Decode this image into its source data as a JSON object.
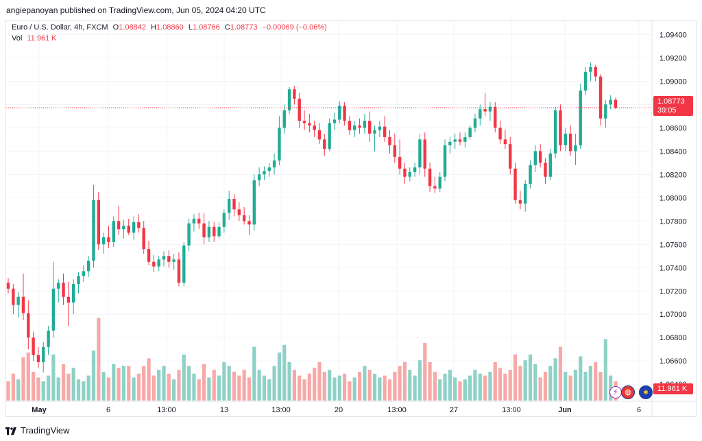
{
  "header": {
    "publish_line": "angiepanoyan published on TradingView.com, Jun 05, 2024 04:20 UTC"
  },
  "legend": {
    "symbol": "Euro / U.S. Dollar, 4h, FXCM",
    "o_label": "O",
    "o_value": "1.08842",
    "h_label": "H",
    "h_value": "1.08860",
    "l_label": "L",
    "l_value": "1.08766",
    "c_label": "C",
    "c_value": "1.08773",
    "change": "−0.00069 (−0.06%)",
    "vol_label": "Vol",
    "vol_value": "11.961 K"
  },
  "tags": {
    "last_price": "1.08773",
    "countdown": "39:05",
    "volume": "11.961 K"
  },
  "colors": {
    "up": "#22ab94",
    "down": "#f23645",
    "up_vol": "#8fd1c6",
    "down_vol": "#f7a9a7",
    "grid": "#f0f3fa"
  },
  "footer": {
    "brand": "TradingView"
  },
  "chart_data": {
    "type": "candlestick",
    "title": "Euro / U.S. Dollar, 4h, FXCM",
    "y_ticks": [
      "1.09400",
      "1.09200",
      "1.09000",
      "1.08800",
      "1.08600",
      "1.08400",
      "1.08200",
      "1.08000",
      "1.07800",
      "1.07600",
      "1.07400",
      "1.07200",
      "1.07000",
      "1.06800",
      "1.06600",
      "1.06400"
    ],
    "x_ticks": [
      "May",
      "6",
      "13:00",
      "13",
      "13:00",
      "20",
      "13:00",
      "27",
      "13:00",
      "Jun",
      "6"
    ],
    "ylim": [
      1.0626,
      1.0952
    ],
    "last_price": 1.08773,
    "series": [
      {
        "o": 1.0727,
        "h": 1.0731,
        "l": 1.0718,
        "c": 1.0722,
        "v": 0.2
      },
      {
        "o": 1.0722,
        "h": 1.0726,
        "l": 1.07,
        "c": 1.0708,
        "v": 0.28
      },
      {
        "o": 1.0708,
        "h": 1.0719,
        "l": 1.0697,
        "c": 1.0715,
        "v": 0.22
      },
      {
        "o": 1.0715,
        "h": 1.0735,
        "l": 1.0695,
        "c": 1.0701,
        "v": 0.45
      },
      {
        "o": 1.0701,
        "h": 1.0712,
        "l": 1.067,
        "c": 1.068,
        "v": 0.5
      },
      {
        "o": 1.068,
        "h": 1.0685,
        "l": 1.066,
        "c": 1.0665,
        "v": 0.3
      },
      {
        "o": 1.0665,
        "h": 1.0672,
        "l": 1.0654,
        "c": 1.0659,
        "v": 0.24
      },
      {
        "o": 1.0659,
        "h": 1.0676,
        "l": 1.065,
        "c": 1.0672,
        "v": 0.2
      },
      {
        "o": 1.0672,
        "h": 1.069,
        "l": 1.0665,
        "c": 1.0686,
        "v": 0.26
      },
      {
        "o": 1.0686,
        "h": 1.0745,
        "l": 1.068,
        "c": 1.0722,
        "v": 0.48
      },
      {
        "o": 1.0722,
        "h": 1.073,
        "l": 1.071,
        "c": 1.0727,
        "v": 0.24
      },
      {
        "o": 1.0727,
        "h": 1.0735,
        "l": 1.0708,
        "c": 1.0715,
        "v": 0.38
      },
      {
        "o": 1.0715,
        "h": 1.0728,
        "l": 1.069,
        "c": 1.071,
        "v": 0.28
      },
      {
        "o": 1.071,
        "h": 1.073,
        "l": 1.07,
        "c": 1.0726,
        "v": 0.34
      },
      {
        "o": 1.0726,
        "h": 1.0736,
        "l": 1.0718,
        "c": 1.0733,
        "v": 0.22
      },
      {
        "o": 1.0733,
        "h": 1.0742,
        "l": 1.0728,
        "c": 1.0737,
        "v": 0.2
      },
      {
        "o": 1.0737,
        "h": 1.075,
        "l": 1.0732,
        "c": 1.0746,
        "v": 0.26
      },
      {
        "o": 1.0746,
        "h": 1.0811,
        "l": 1.074,
        "c": 1.0798,
        "v": 0.52
      },
      {
        "o": 1.0798,
        "h": 1.0805,
        "l": 1.0755,
        "c": 1.076,
        "v": 0.86
      },
      {
        "o": 1.076,
        "h": 1.077,
        "l": 1.0752,
        "c": 1.0766,
        "v": 0.3
      },
      {
        "o": 1.0766,
        "h": 1.0776,
        "l": 1.0757,
        "c": 1.0762,
        "v": 0.24
      },
      {
        "o": 1.0762,
        "h": 1.0784,
        "l": 1.0758,
        "c": 1.078,
        "v": 0.38
      },
      {
        "o": 1.078,
        "h": 1.0793,
        "l": 1.0768,
        "c": 1.0773,
        "v": 0.34
      },
      {
        "o": 1.0773,
        "h": 1.0781,
        "l": 1.0765,
        "c": 1.0776,
        "v": 0.36
      },
      {
        "o": 1.0776,
        "h": 1.0782,
        "l": 1.0768,
        "c": 1.077,
        "v": 0.36
      },
      {
        "o": 1.077,
        "h": 1.0784,
        "l": 1.0764,
        "c": 1.0779,
        "v": 0.24
      },
      {
        "o": 1.0779,
        "h": 1.0786,
        "l": 1.077,
        "c": 1.0774,
        "v": 0.28
      },
      {
        "o": 1.0774,
        "h": 1.078,
        "l": 1.0752,
        "c": 1.0756,
        "v": 0.36
      },
      {
        "o": 1.0756,
        "h": 1.0763,
        "l": 1.0742,
        "c": 1.0745,
        "v": 0.44
      },
      {
        "o": 1.0745,
        "h": 1.0751,
        "l": 1.0736,
        "c": 1.0741,
        "v": 0.26
      },
      {
        "o": 1.0741,
        "h": 1.075,
        "l": 1.0737,
        "c": 1.0747,
        "v": 0.32
      },
      {
        "o": 1.0747,
        "h": 1.0754,
        "l": 1.0741,
        "c": 1.075,
        "v": 0.36
      },
      {
        "o": 1.075,
        "h": 1.0755,
        "l": 1.074,
        "c": 1.0745,
        "v": 0.28
      },
      {
        "o": 1.0745,
        "h": 1.0752,
        "l": 1.0738,
        "c": 1.0747,
        "v": 0.22
      },
      {
        "o": 1.0747,
        "h": 1.0753,
        "l": 1.0724,
        "c": 1.0727,
        "v": 0.32
      },
      {
        "o": 1.0727,
        "h": 1.0762,
        "l": 1.0724,
        "c": 1.0759,
        "v": 0.48
      },
      {
        "o": 1.0759,
        "h": 1.0782,
        "l": 1.0754,
        "c": 1.0778,
        "v": 0.36
      },
      {
        "o": 1.0778,
        "h": 1.0786,
        "l": 1.0771,
        "c": 1.0782,
        "v": 0.28
      },
      {
        "o": 1.0782,
        "h": 1.0787,
        "l": 1.0773,
        "c": 1.0778,
        "v": 0.22
      },
      {
        "o": 1.0778,
        "h": 1.0787,
        "l": 1.076,
        "c": 1.0766,
        "v": 0.38
      },
      {
        "o": 1.0766,
        "h": 1.078,
        "l": 1.0762,
        "c": 1.0775,
        "v": 0.24
      },
      {
        "o": 1.0775,
        "h": 1.0779,
        "l": 1.0762,
        "c": 1.0767,
        "v": 0.32
      },
      {
        "o": 1.0767,
        "h": 1.0779,
        "l": 1.0765,
        "c": 1.0775,
        "v": 0.26
      },
      {
        "o": 1.0775,
        "h": 1.079,
        "l": 1.077,
        "c": 1.0787,
        "v": 0.4
      },
      {
        "o": 1.0787,
        "h": 1.0806,
        "l": 1.0781,
        "c": 1.0799,
        "v": 0.36
      },
      {
        "o": 1.0799,
        "h": 1.0803,
        "l": 1.0784,
        "c": 1.079,
        "v": 0.3
      },
      {
        "o": 1.079,
        "h": 1.0796,
        "l": 1.078,
        "c": 1.0785,
        "v": 0.26
      },
      {
        "o": 1.0785,
        "h": 1.0792,
        "l": 1.0777,
        "c": 1.078,
        "v": 0.32
      },
      {
        "o": 1.078,
        "h": 1.0785,
        "l": 1.0768,
        "c": 1.0777,
        "v": 0.24
      },
      {
        "o": 1.0777,
        "h": 1.082,
        "l": 1.0772,
        "c": 1.0815,
        "v": 0.56
      },
      {
        "o": 1.0815,
        "h": 1.0826,
        "l": 1.081,
        "c": 1.082,
        "v": 0.32
      },
      {
        "o": 1.082,
        "h": 1.0827,
        "l": 1.0815,
        "c": 1.0823,
        "v": 0.26
      },
      {
        "o": 1.0823,
        "h": 1.083,
        "l": 1.0818,
        "c": 1.0826,
        "v": 0.22
      },
      {
        "o": 1.0826,
        "h": 1.0838,
        "l": 1.082,
        "c": 1.0832,
        "v": 0.36
      },
      {
        "o": 1.0832,
        "h": 1.087,
        "l": 1.0828,
        "c": 1.086,
        "v": 0.5
      },
      {
        "o": 1.086,
        "h": 1.088,
        "l": 1.0855,
        "c": 1.0875,
        "v": 0.58
      },
      {
        "o": 1.0875,
        "h": 1.0895,
        "l": 1.0872,
        "c": 1.0893,
        "v": 0.4
      },
      {
        "o": 1.0893,
        "h": 1.0896,
        "l": 1.088,
        "c": 1.0885,
        "v": 0.32
      },
      {
        "o": 1.0885,
        "h": 1.089,
        "l": 1.086,
        "c": 1.0866,
        "v": 0.26
      },
      {
        "o": 1.0866,
        "h": 1.0875,
        "l": 1.0858,
        "c": 1.0864,
        "v": 0.22
      },
      {
        "o": 1.0864,
        "h": 1.0872,
        "l": 1.0856,
        "c": 1.0862,
        "v": 0.28
      },
      {
        "o": 1.0862,
        "h": 1.0866,
        "l": 1.0852,
        "c": 1.0858,
        "v": 0.34
      },
      {
        "o": 1.0858,
        "h": 1.0864,
        "l": 1.0846,
        "c": 1.085,
        "v": 0.4
      },
      {
        "o": 1.085,
        "h": 1.0855,
        "l": 1.0836,
        "c": 1.0842,
        "v": 0.3
      },
      {
        "o": 1.0842,
        "h": 1.0868,
        "l": 1.084,
        "c": 1.0864,
        "v": 0.32
      },
      {
        "o": 1.0864,
        "h": 1.0873,
        "l": 1.0858,
        "c": 1.0867,
        "v": 0.24
      },
      {
        "o": 1.0867,
        "h": 1.0883,
        "l": 1.0864,
        "c": 1.0879,
        "v": 0.26
      },
      {
        "o": 1.0879,
        "h": 1.0882,
        "l": 1.0862,
        "c": 1.0866,
        "v": 0.28
      },
      {
        "o": 1.0866,
        "h": 1.087,
        "l": 1.0854,
        "c": 1.0858,
        "v": 0.2
      },
      {
        "o": 1.0858,
        "h": 1.0866,
        "l": 1.0852,
        "c": 1.0862,
        "v": 0.24
      },
      {
        "o": 1.0862,
        "h": 1.0868,
        "l": 1.0855,
        "c": 1.086,
        "v": 0.3
      },
      {
        "o": 1.086,
        "h": 1.0872,
        "l": 1.0855,
        "c": 1.0866,
        "v": 0.36
      },
      {
        "o": 1.0866,
        "h": 1.0874,
        "l": 1.0848,
        "c": 1.0855,
        "v": 0.32
      },
      {
        "o": 1.0855,
        "h": 1.0862,
        "l": 1.084,
        "c": 1.0858,
        "v": 0.28
      },
      {
        "o": 1.0858,
        "h": 1.0866,
        "l": 1.0852,
        "c": 1.0861,
        "v": 0.24
      },
      {
        "o": 1.0861,
        "h": 1.087,
        "l": 1.0848,
        "c": 1.0852,
        "v": 0.26
      },
      {
        "o": 1.0852,
        "h": 1.0858,
        "l": 1.0838,
        "c": 1.0845,
        "v": 0.22
      },
      {
        "o": 1.0845,
        "h": 1.0855,
        "l": 1.083,
        "c": 1.0835,
        "v": 0.3
      },
      {
        "o": 1.0835,
        "h": 1.085,
        "l": 1.082,
        "c": 1.0825,
        "v": 0.36
      },
      {
        "o": 1.0825,
        "h": 1.083,
        "l": 1.0812,
        "c": 1.0818,
        "v": 0.4
      },
      {
        "o": 1.0818,
        "h": 1.0826,
        "l": 1.0814,
        "c": 1.0822,
        "v": 0.32
      },
      {
        "o": 1.0822,
        "h": 1.083,
        "l": 1.0818,
        "c": 1.0826,
        "v": 0.26
      },
      {
        "o": 1.0826,
        "h": 1.0855,
        "l": 1.082,
        "c": 1.085,
        "v": 0.42
      },
      {
        "o": 1.085,
        "h": 1.0856,
        "l": 1.0818,
        "c": 1.0825,
        "v": 0.6
      },
      {
        "o": 1.0825,
        "h": 1.083,
        "l": 1.0805,
        "c": 1.081,
        "v": 0.4
      },
      {
        "o": 1.081,
        "h": 1.0818,
        "l": 1.0804,
        "c": 1.0808,
        "v": 0.3
      },
      {
        "o": 1.0808,
        "h": 1.0822,
        "l": 1.0805,
        "c": 1.0818,
        "v": 0.22
      },
      {
        "o": 1.0818,
        "h": 1.085,
        "l": 1.0814,
        "c": 1.0845,
        "v": 0.28
      },
      {
        "o": 1.0845,
        "h": 1.0852,
        "l": 1.0838,
        "c": 1.0848,
        "v": 0.32
      },
      {
        "o": 1.0848,
        "h": 1.0855,
        "l": 1.0842,
        "c": 1.085,
        "v": 0.24
      },
      {
        "o": 1.085,
        "h": 1.0856,
        "l": 1.0845,
        "c": 1.0848,
        "v": 0.2
      },
      {
        "o": 1.0848,
        "h": 1.0856,
        "l": 1.0843,
        "c": 1.0852,
        "v": 0.22
      },
      {
        "o": 1.0852,
        "h": 1.0862,
        "l": 1.085,
        "c": 1.086,
        "v": 0.26
      },
      {
        "o": 1.086,
        "h": 1.0872,
        "l": 1.0856,
        "c": 1.0868,
        "v": 0.32
      },
      {
        "o": 1.0868,
        "h": 1.088,
        "l": 1.0862,
        "c": 1.0876,
        "v": 0.28
      },
      {
        "o": 1.0876,
        "h": 1.089,
        "l": 1.087,
        "c": 1.0874,
        "v": 0.26
      },
      {
        "o": 1.0874,
        "h": 1.0882,
        "l": 1.0866,
        "c": 1.0878,
        "v": 0.3
      },
      {
        "o": 1.0878,
        "h": 1.0882,
        "l": 1.0856,
        "c": 1.086,
        "v": 0.4
      },
      {
        "o": 1.086,
        "h": 1.0866,
        "l": 1.0846,
        "c": 1.085,
        "v": 0.34
      },
      {
        "o": 1.085,
        "h": 1.0858,
        "l": 1.0842,
        "c": 1.0846,
        "v": 0.28
      },
      {
        "o": 1.0846,
        "h": 1.0852,
        "l": 1.082,
        "c": 1.0825,
        "v": 0.32
      },
      {
        "o": 1.0825,
        "h": 1.083,
        "l": 1.0795,
        "c": 1.0798,
        "v": 0.48
      },
      {
        "o": 1.0798,
        "h": 1.0806,
        "l": 1.079,
        "c": 1.0795,
        "v": 0.36
      },
      {
        "o": 1.0795,
        "h": 1.0815,
        "l": 1.0788,
        "c": 1.0812,
        "v": 0.42
      },
      {
        "o": 1.0812,
        "h": 1.0832,
        "l": 1.0808,
        "c": 1.0828,
        "v": 0.48
      },
      {
        "o": 1.0828,
        "h": 1.0845,
        "l": 1.0822,
        "c": 1.084,
        "v": 0.38
      },
      {
        "o": 1.084,
        "h": 1.0846,
        "l": 1.0826,
        "c": 1.083,
        "v": 0.24
      },
      {
        "o": 1.083,
        "h": 1.0834,
        "l": 1.0812,
        "c": 1.0818,
        "v": 0.3
      },
      {
        "o": 1.0818,
        "h": 1.0842,
        "l": 1.0815,
        "c": 1.0838,
        "v": 0.36
      },
      {
        "o": 1.0838,
        "h": 1.0878,
        "l": 1.0834,
        "c": 1.0875,
        "v": 0.44
      },
      {
        "o": 1.0875,
        "h": 1.088,
        "l": 1.084,
        "c": 1.0845,
        "v": 0.56
      },
      {
        "o": 1.0845,
        "h": 1.086,
        "l": 1.084,
        "c": 1.0855,
        "v": 0.3
      },
      {
        "o": 1.0855,
        "h": 1.0862,
        "l": 1.0836,
        "c": 1.084,
        "v": 0.26
      },
      {
        "o": 1.084,
        "h": 1.0855,
        "l": 1.0828,
        "c": 1.0845,
        "v": 0.32
      },
      {
        "o": 1.0845,
        "h": 1.0898,
        "l": 1.0842,
        "c": 1.0892,
        "v": 0.46
      },
      {
        "o": 1.0892,
        "h": 1.0912,
        "l": 1.0888,
        "c": 1.0908,
        "v": 0.3
      },
      {
        "o": 1.0908,
        "h": 1.0916,
        "l": 1.09,
        "c": 1.0912,
        "v": 0.36
      },
      {
        "o": 1.0912,
        "h": 1.0914,
        "l": 1.09,
        "c": 1.0904,
        "v": 0.4
      },
      {
        "o": 1.0904,
        "h": 1.0906,
        "l": 1.0862,
        "c": 1.0868,
        "v": 0.3
      },
      {
        "o": 1.0868,
        "h": 1.0884,
        "l": 1.086,
        "c": 1.088,
        "v": 0.64
      },
      {
        "o": 1.088,
        "h": 1.0888,
        "l": 1.0876,
        "c": 1.0884,
        "v": 0.26
      },
      {
        "o": 1.0884,
        "h": 1.0886,
        "l": 1.0876,
        "c": 1.0877,
        "v": 0.2
      }
    ]
  }
}
